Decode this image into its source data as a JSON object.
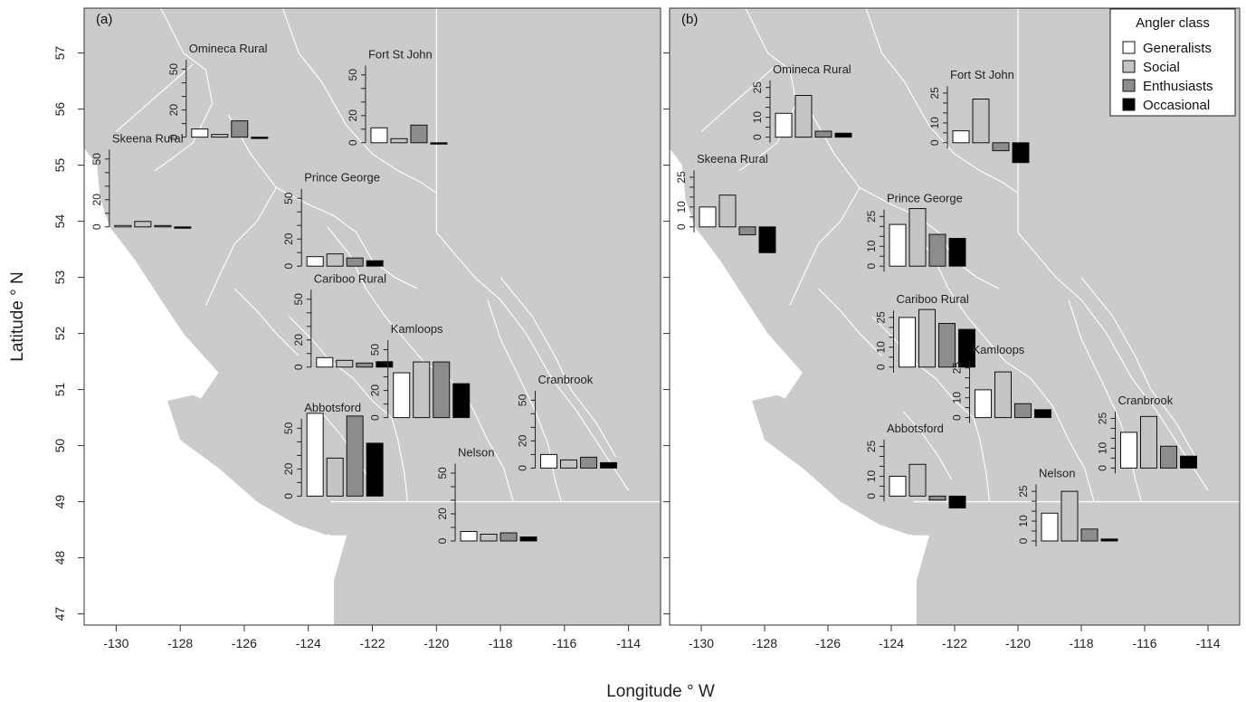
{
  "figure": {
    "xlabel": "Longitude ° W",
    "ylabel": "Latitude ° N"
  },
  "colors": {
    "land": "#cbcbcb",
    "boundary": "#ffffff",
    "axis": "#333333",
    "classes": [
      "#ffffff",
      "#c4c4c4",
      "#8c8c8c",
      "#000000"
    ]
  },
  "chart_data": [
    {
      "type": "bar",
      "panel_label": "(a)",
      "map": {
        "xlim": [
          -131,
          -113
        ],
        "ylim": [
          46.8,
          57.8
        ]
      },
      "x_ticks": [
        -130,
        -128,
        -126,
        -124,
        -122,
        -120,
        -118,
        -116,
        -114
      ],
      "y_ticks": [
        47,
        48,
        49,
        50,
        51,
        52,
        53,
        54,
        55,
        56,
        57
      ],
      "inset_ylim": [
        0,
        60
      ],
      "inset_ticks": [
        0,
        20,
        50
      ],
      "categories": [
        "Generalists",
        "Social",
        "Enthusiasts",
        "Occasional"
      ],
      "regions": [
        {
          "name": "Omineca Rural",
          "lon": -126.4,
          "lat": 55.5,
          "values": [
            6,
            2,
            12,
            0
          ]
        },
        {
          "name": "Fort St John",
          "lon": -120.8,
          "lat": 55.4,
          "values": [
            11,
            3,
            13,
            0
          ]
        },
        {
          "name": "Skeena Rural",
          "lon": -128.8,
          "lat": 53.9,
          "values": [
            1,
            4,
            1,
            0
          ]
        },
        {
          "name": "Prince George",
          "lon": -122.8,
          "lat": 53.2,
          "values": [
            7,
            9,
            6,
            4
          ]
        },
        {
          "name": "Cariboo Rural",
          "lon": -122.5,
          "lat": 51.4,
          "values": [
            7,
            5,
            3,
            4
          ]
        },
        {
          "name": "Kamloops",
          "lon": -120.1,
          "lat": 50.5,
          "values": [
            33,
            41,
            41,
            25
          ]
        },
        {
          "name": "Abbotsford",
          "lon": -122.8,
          "lat": 49.1,
          "values": [
            61,
            28,
            59,
            39
          ]
        },
        {
          "name": "Cranbrook",
          "lon": -115.5,
          "lat": 49.6,
          "values": [
            10,
            6,
            8,
            4
          ]
        },
        {
          "name": "Nelson",
          "lon": -118.0,
          "lat": 48.3,
          "values": [
            7,
            5,
            6,
            3
          ]
        }
      ]
    },
    {
      "type": "bar",
      "panel_label": "(b)",
      "map": {
        "xlim": [
          -131,
          -113
        ],
        "ylim": [
          46.8,
          57.8
        ]
      },
      "x_ticks": [
        -130,
        -128,
        -126,
        -124,
        -122,
        -120,
        -118,
        -116,
        -114
      ],
      "y_ticks": [],
      "inset_ylim": [
        -11,
        30
      ],
      "inset_ticks": [
        0,
        10,
        25
      ],
      "categories": [
        "Generalists",
        "Social",
        "Enthusiasts",
        "Occasional"
      ],
      "legend": {
        "title": "Angler class",
        "entries": [
          "Generalists",
          "Social",
          "Enthusiasts",
          "Occasional"
        ],
        "position": "top-right"
      },
      "regions": [
        {
          "name": "Omineca Rural",
          "lon": -126.4,
          "lat": 55.5,
          "values": [
            12,
            21,
            3,
            2
          ]
        },
        {
          "name": "Fort St John",
          "lon": -120.8,
          "lat": 55.4,
          "values": [
            6,
            22,
            -4,
            -10
          ]
        },
        {
          "name": "Skeena Rural",
          "lon": -128.8,
          "lat": 53.9,
          "values": [
            10,
            16,
            -4,
            -13
          ]
        },
        {
          "name": "Prince George",
          "lon": -122.8,
          "lat": 53.2,
          "values": [
            21,
            29,
            16,
            14
          ]
        },
        {
          "name": "Cariboo Rural",
          "lon": -122.5,
          "lat": 51.4,
          "values": [
            25,
            29,
            22,
            19
          ]
        },
        {
          "name": "Kamloops",
          "lon": -120.1,
          "lat": 50.5,
          "values": [
            14,
            23,
            7,
            4
          ]
        },
        {
          "name": "Abbotsford",
          "lon": -122.8,
          "lat": 49.1,
          "values": [
            10,
            16,
            -2,
            -6
          ]
        },
        {
          "name": "Cranbrook",
          "lon": -115.5,
          "lat": 49.6,
          "values": [
            18,
            26,
            11,
            6
          ]
        },
        {
          "name": "Nelson",
          "lon": -118.0,
          "lat": 48.3,
          "values": [
            14,
            25,
            6,
            1
          ]
        }
      ]
    }
  ]
}
